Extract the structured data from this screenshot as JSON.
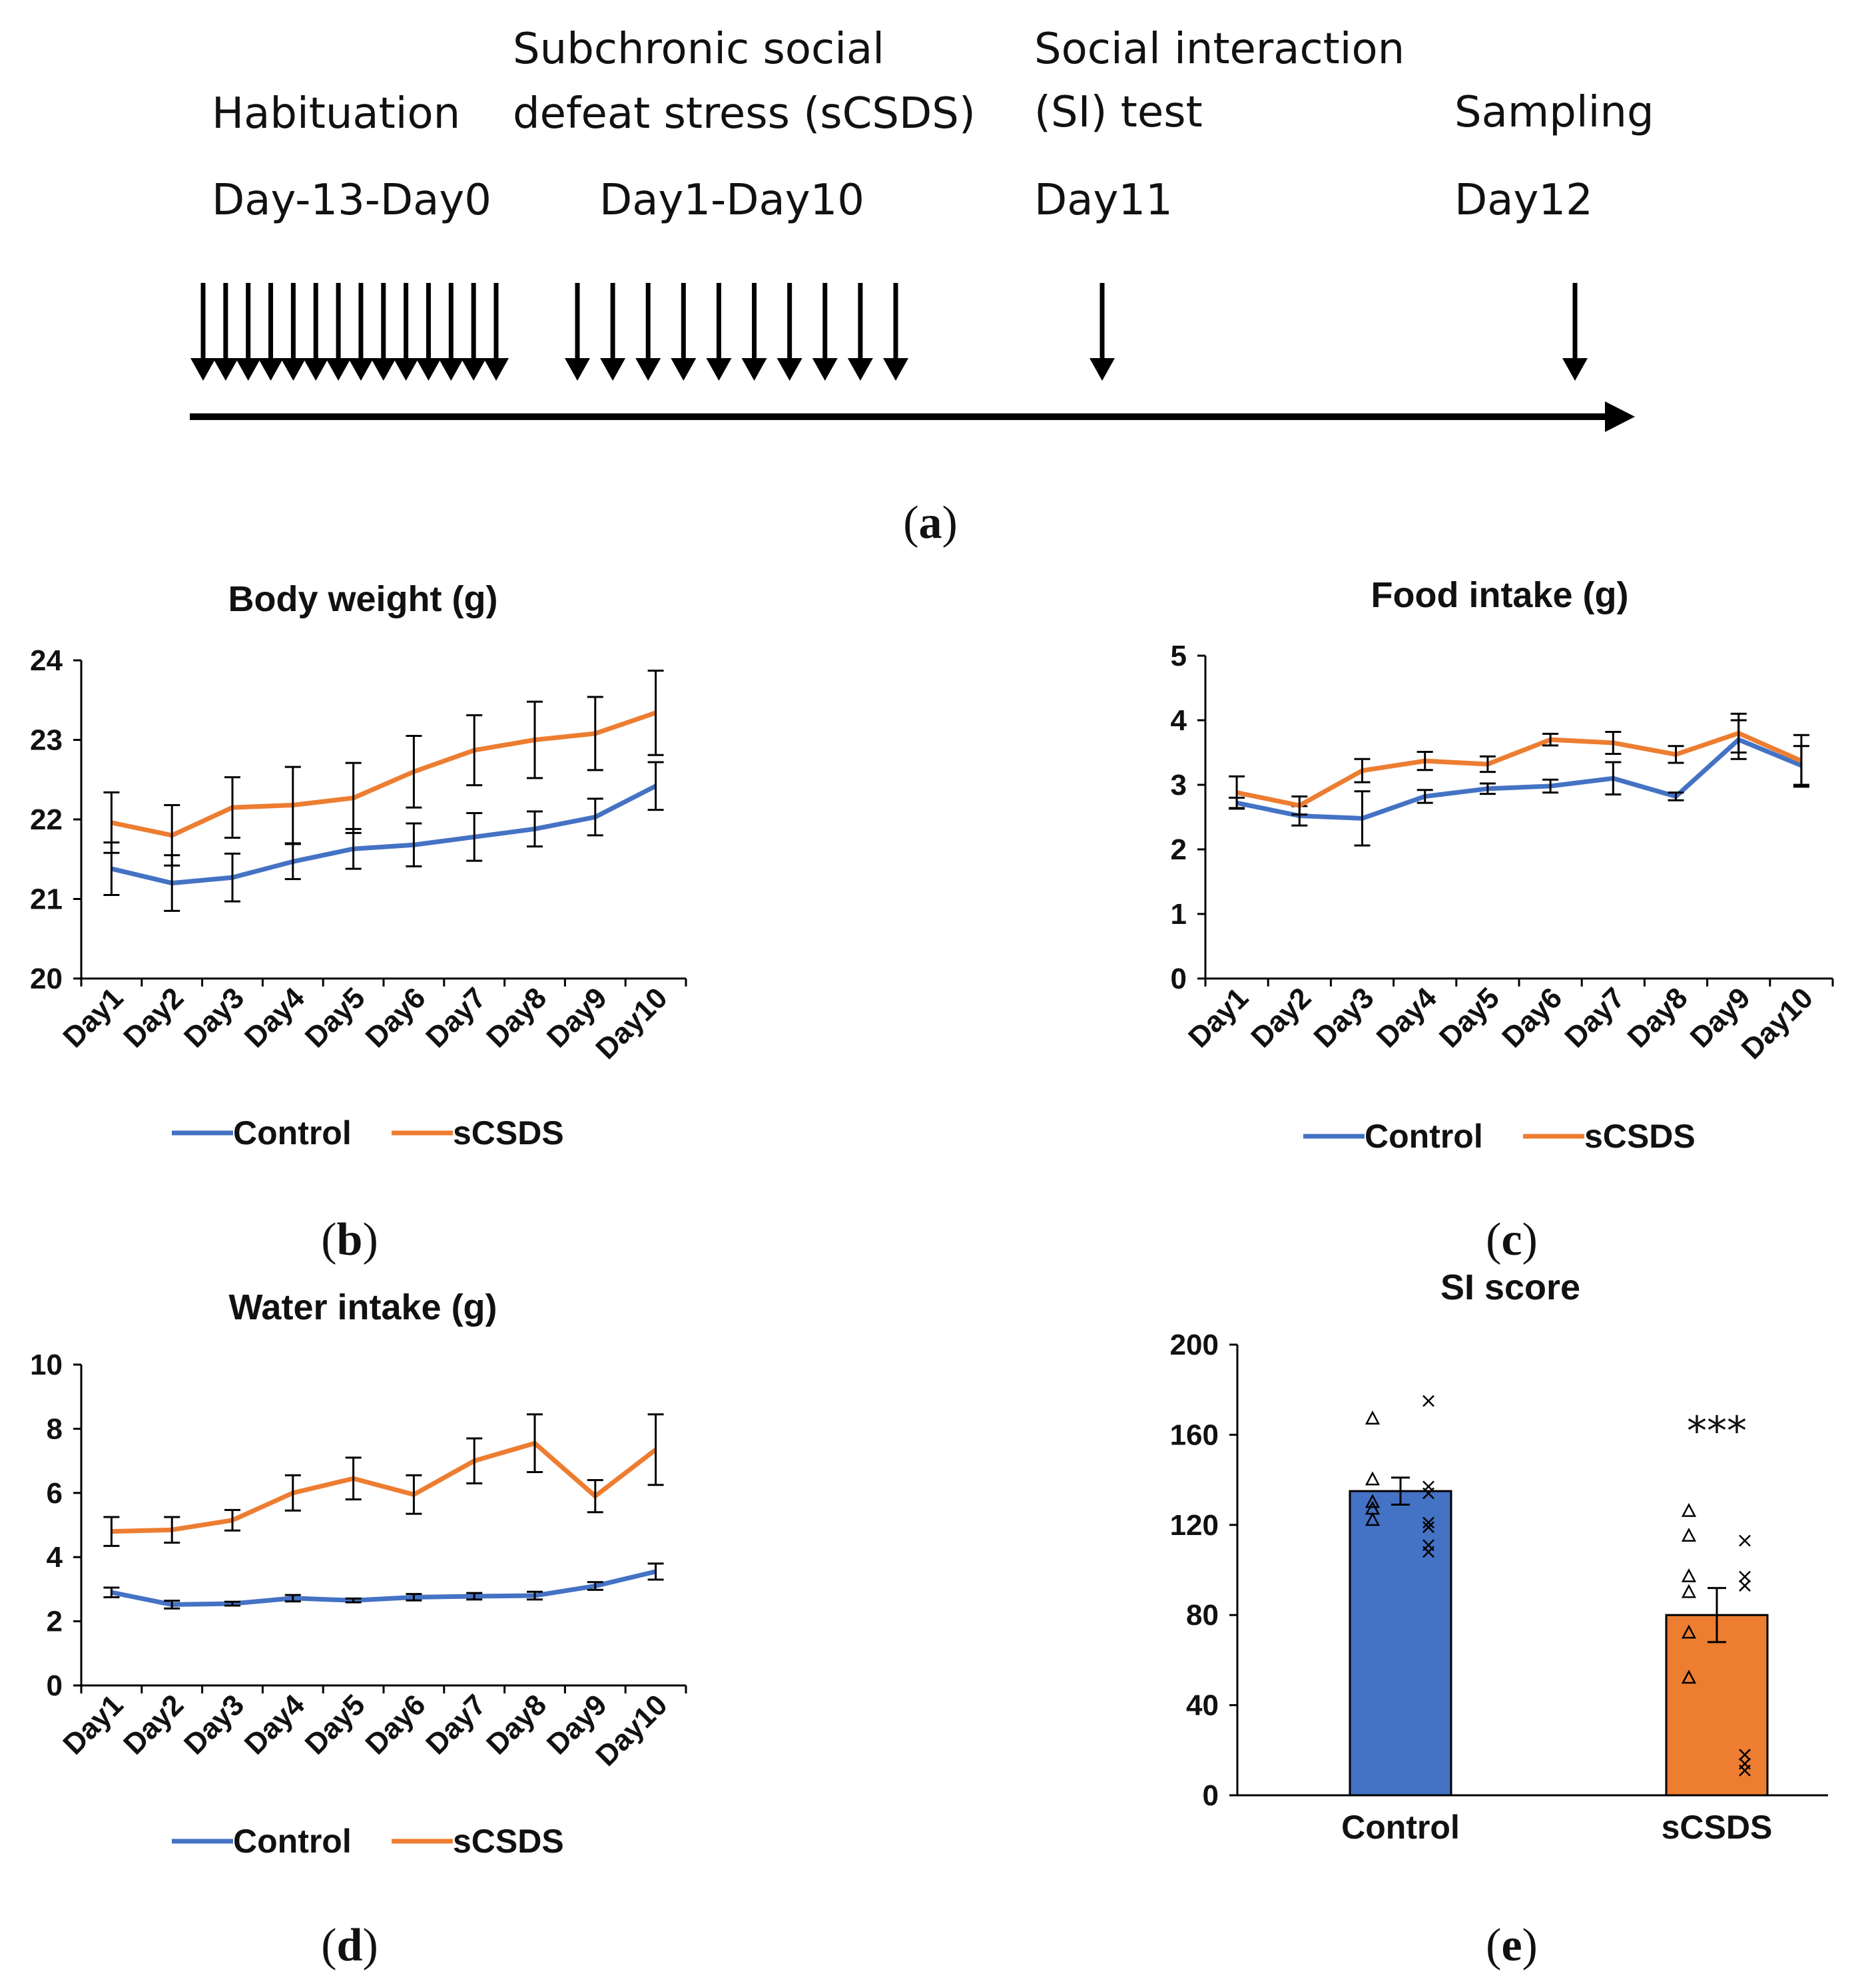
{
  "timeline": {
    "phases": [
      {
        "line1": "",
        "line2": "Habituation",
        "days": "Day-13-Day0",
        "arrows": 14
      },
      {
        "line1": "Subchronic social",
        "line2": "defeat stress (sCSDS)",
        "days": "Day1-Day10",
        "arrows": 10
      },
      {
        "line1": "Social interaction",
        "line2": "(SI) test",
        "days": "Day11",
        "arrows": 1
      },
      {
        "line1": "",
        "line2": "Sampling",
        "days": "Day12",
        "arrows": 1
      }
    ]
  },
  "panel_labels": {
    "a": "a",
    "b": "b",
    "c": "c",
    "d": "d",
    "e": "e"
  },
  "colors": {
    "control": "#4472C4",
    "scsds": "#ED7D31",
    "axis": "#000000"
  },
  "legend": {
    "control": "Control",
    "scsds": "sCSDS"
  },
  "chart_data": [
    {
      "id": "b",
      "type": "line",
      "title": "Body weight (g)",
      "categories": [
        "Day1",
        "Day2",
        "Day3",
        "Day4",
        "Day5",
        "Day6",
        "Day7",
        "Day8",
        "Day9",
        "Day10"
      ],
      "ylim": [
        20,
        24
      ],
      "yticks": [
        20,
        21,
        22,
        23,
        24
      ],
      "series": [
        {
          "name": "Control",
          "values": [
            21.38,
            21.2,
            21.27,
            21.47,
            21.63,
            21.68,
            21.78,
            21.88,
            22.03,
            22.42
          ],
          "errors": [
            0.33,
            0.35,
            0.3,
            0.22,
            0.25,
            0.27,
            0.3,
            0.22,
            0.23,
            0.3
          ]
        },
        {
          "name": "sCSDS",
          "values": [
            21.96,
            21.8,
            22.15,
            22.18,
            22.27,
            22.6,
            22.87,
            23.0,
            23.08,
            23.34
          ],
          "errors": [
            0.38,
            0.38,
            0.38,
            0.48,
            0.44,
            0.45,
            0.44,
            0.48,
            0.46,
            0.53
          ]
        }
      ]
    },
    {
      "id": "c",
      "type": "line",
      "title": "Food intake (g)",
      "categories": [
        "Day1",
        "Day2",
        "Day3",
        "Day4",
        "Day5",
        "Day6",
        "Day7",
        "Day8",
        "Day9",
        "Day10"
      ],
      "ylim": [
        0,
        5
      ],
      "yticks": [
        0,
        1,
        2,
        3,
        4,
        5
      ],
      "series": [
        {
          "name": "Control",
          "values": [
            2.72,
            2.52,
            2.48,
            2.82,
            2.94,
            2.98,
            3.1,
            2.82,
            3.7,
            3.3
          ],
          "errors": [
            0.08,
            0.15,
            0.42,
            0.1,
            0.08,
            0.1,
            0.25,
            0.06,
            0.3,
            0.3
          ]
        },
        {
          "name": "sCSDS",
          "values": [
            2.88,
            2.68,
            3.22,
            3.37,
            3.32,
            3.7,
            3.65,
            3.47,
            3.8,
            3.37
          ],
          "errors": [
            0.25,
            0.14,
            0.18,
            0.14,
            0.12,
            0.09,
            0.17,
            0.13,
            0.3,
            0.4
          ]
        }
      ]
    },
    {
      "id": "d",
      "type": "line",
      "title": "Water intake (g)",
      "categories": [
        "Day1",
        "Day2",
        "Day3",
        "Day4",
        "Day5",
        "Day6",
        "Day7",
        "Day8",
        "Day9",
        "Day10"
      ],
      "ylim": [
        0,
        10
      ],
      "yticks": [
        0,
        2,
        4,
        6,
        8,
        10
      ],
      "series": [
        {
          "name": "Control",
          "values": [
            2.9,
            2.52,
            2.55,
            2.72,
            2.65,
            2.75,
            2.78,
            2.8,
            3.1,
            3.55
          ],
          "errors": [
            0.15,
            0.12,
            0.06,
            0.1,
            0.06,
            0.1,
            0.1,
            0.12,
            0.12,
            0.25
          ]
        },
        {
          "name": "sCSDS",
          "values": [
            4.8,
            4.85,
            5.15,
            6.0,
            6.45,
            5.95,
            7.0,
            7.55,
            5.9,
            7.35
          ],
          "errors": [
            0.45,
            0.4,
            0.32,
            0.55,
            0.65,
            0.6,
            0.7,
            0.9,
            0.5,
            1.1
          ]
        }
      ]
    },
    {
      "id": "e",
      "type": "bar",
      "title": "SI score",
      "categories": [
        "Control",
        "sCSDS"
      ],
      "values": [
        135,
        80
      ],
      "errors": [
        6,
        12
      ],
      "ylim": [
        0,
        200
      ],
      "yticks": [
        0,
        40,
        80,
        120,
        160,
        200
      ],
      "annotation": "***",
      "points": [
        {
          "group": "Control",
          "marker": "triangle",
          "values": [
            167,
            140,
            130,
            127,
            122
          ]
        },
        {
          "group": "Control",
          "marker": "x",
          "values": [
            175,
            137,
            134,
            121,
            119,
            111,
            108
          ]
        },
        {
          "group": "sCSDS",
          "marker": "triangle",
          "values": [
            126,
            115,
            97,
            90,
            72,
            52
          ]
        },
        {
          "group": "sCSDS",
          "marker": "x",
          "values": [
            113,
            97,
            93,
            18,
            14,
            11
          ]
        }
      ]
    }
  ]
}
